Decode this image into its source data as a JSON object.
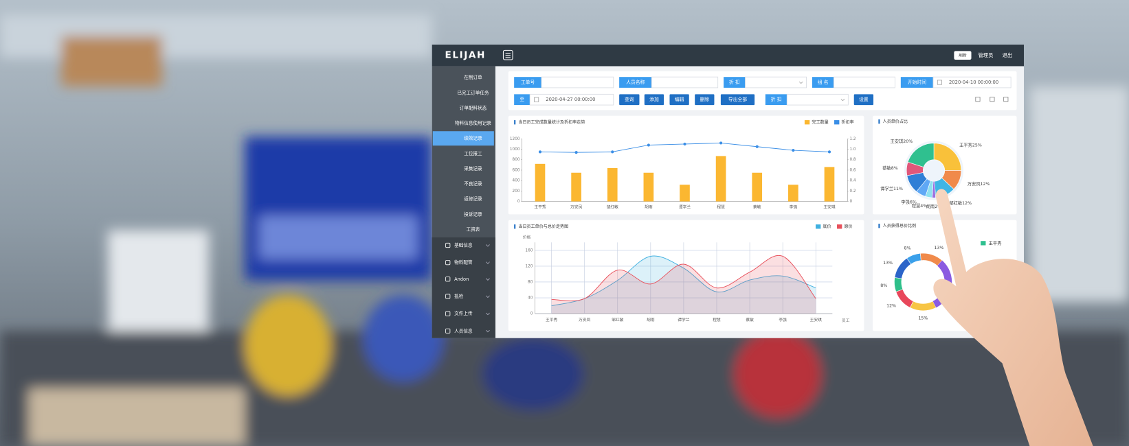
{
  "header": {
    "brand": "ELIJAH",
    "button": "刷新",
    "user": "管理员",
    "logout": "退出"
  },
  "sidebar": {
    "items": [
      "在制订单",
      "已完工订单任务",
      "订单配料状态",
      "物料信息使用记录",
      "绩效记录",
      "工位报工",
      "采集记录",
      "不良记录",
      "返修记录",
      "投诉记录",
      "工资表"
    ],
    "active": 4,
    "groups": [
      "基础信息",
      "物料配管",
      "Andon",
      "抵检",
      "文件上传",
      "人员信息"
    ]
  },
  "filters": {
    "fields": [
      {
        "label": "工单号"
      },
      {
        "label": "人员名称"
      },
      {
        "label": "折 扣"
      },
      {
        "label": "组 名"
      },
      {
        "label": "开始时间",
        "value": "2020-04-10 00:00:00"
      },
      {
        "label": "至",
        "value": "2020-04-27 00:00:00"
      },
      {
        "label": "折 扣"
      }
    ],
    "buttons": [
      "查询",
      "添加",
      "编辑",
      "删除",
      "导出全部",
      "设置"
    ]
  },
  "chart_data": [
    {
      "type": "bar",
      "title": "当日员工完成数量统计及折扣率走势",
      "categories": [
        "王平秀",
        "万安凤",
        "邹红敏",
        "胡雨",
        "谭学兰",
        "程慧",
        "蔡敏",
        "李强",
        "王安琪"
      ],
      "series": [
        {
          "name": "完工数量",
          "color": "#fbb731",
          "type": "bar",
          "values": [
            720,
            550,
            640,
            550,
            320,
            870,
            550,
            320,
            660
          ]
        },
        {
          "name": "折扣率",
          "color": "#3a8ee6",
          "type": "line",
          "axis": "y2",
          "values": [
            0.95,
            0.94,
            0.95,
            1.08,
            1.1,
            1.12,
            1.05,
            0.98,
            0.95
          ]
        }
      ],
      "ylim": [
        0,
        1200
      ],
      "yticks": [
        0,
        200,
        400,
        600,
        800,
        1000,
        1200
      ],
      "y2lim": [
        0,
        1.2
      ],
      "y2ticks": [
        0,
        0.2,
        0.4,
        0.6,
        0.8,
        {
          "value": 1,
          "label": "1.0"
        },
        1.2
      ]
    },
    {
      "type": "line",
      "title": "当日员工单价与总价走势图",
      "y_label": "价格",
      "x_label": "员工",
      "categories": [
        "王平秀",
        "万安凤",
        "邹红敏",
        "胡雨",
        "谭学兰",
        "程慧",
        "蔡敏",
        "李强",
        "王安琪"
      ],
      "series": [
        {
          "name": "底价",
          "color": "#3fb0e0",
          "values": [
            20,
            38,
            84,
            145,
            115,
            55,
            85,
            95,
            65
          ]
        },
        {
          "name": "原价",
          "color": "#e8505b",
          "values": [
            36,
            38,
            110,
            75,
            125,
            65,
            105,
            145,
            38
          ]
        }
      ],
      "ylim": [
        0,
        180
      ],
      "yticks": [
        0,
        40,
        80,
        120,
        160
      ],
      "grid": true,
      "area": true
    },
    {
      "type": "pie",
      "title": "人员单价占比",
      "categories": [
        "王平秀",
        "万安凤",
        "邹红敏",
        "胡雨",
        "程慧",
        "李强",
        "谭学兰",
        "蔡敏",
        "王安琪"
      ],
      "values": [
        25,
        12,
        12,
        2,
        4,
        6,
        11,
        8,
        20
      ],
      "value_labels": [
        "25%",
        "12%",
        "12%",
        "2%",
        "4%",
        "6%",
        "11%",
        "8%",
        "20%"
      ],
      "colors": [
        "#f9c13a",
        "#f08a4b",
        "#3fb5e5",
        "#9b6fe0",
        "#8fe0f0",
        "#5fa8f5",
        "#2f7fd6",
        "#e0577a",
        "#2fc08f"
      ]
    },
    {
      "type": "pie",
      "title": "人员获得总价比例",
      "legend": {
        "name": "王平秀",
        "color": "#2fc08f"
      },
      "values": [
        15,
        12,
        8,
        13,
        8,
        13
      ],
      "value_labels": [
        "15%",
        "12%",
        "8%",
        "13%",
        "8%",
        "13%"
      ],
      "colors": [
        "#f7c544",
        "#e8475b",
        "#2fbf8a",
        "#2b64c9",
        "#3aa0ea",
        "#f08a4b"
      ]
    }
  ]
}
